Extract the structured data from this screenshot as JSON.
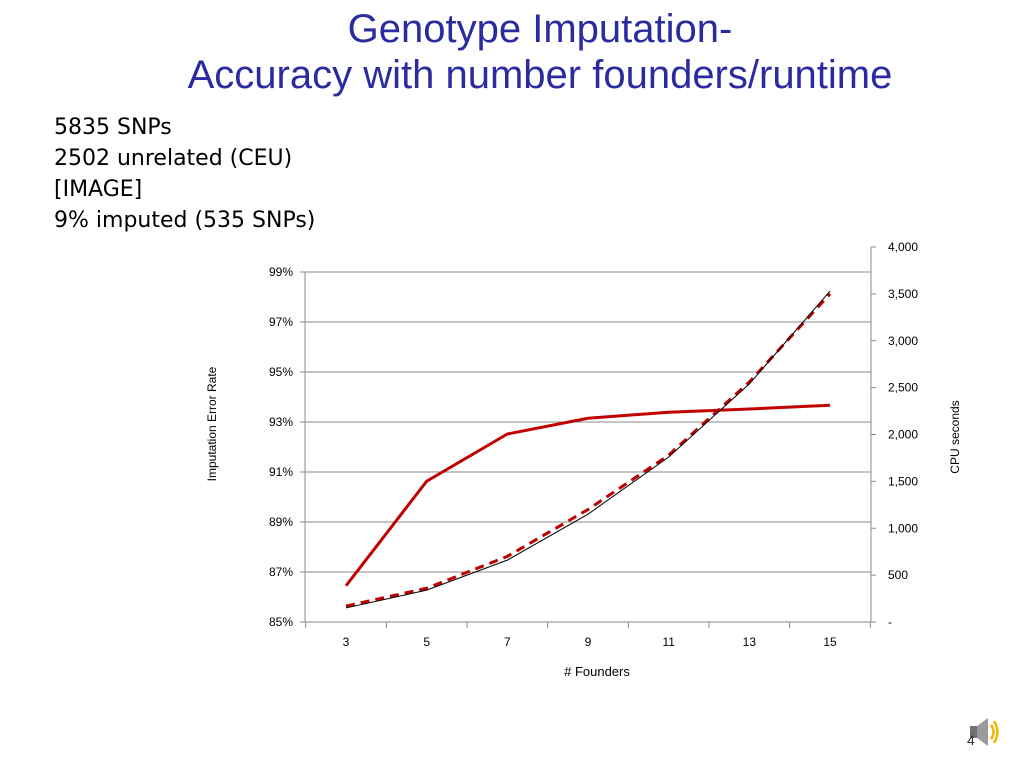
{
  "slide": {
    "title_line1": "Genotype Imputation-",
    "title_line2": "Accuracy with number founders/runtime",
    "notes": [
      "5835 SNPs",
      "2502 unrelated (CEU)",
      "[IMAGE]",
      "9% imputed (535 SNPs)"
    ],
    "speaker_icon": "speaker-sound-icon",
    "page_number": "4"
  },
  "chart_data": {
    "type": "line",
    "x": [
      3,
      5,
      7,
      9,
      11,
      13,
      15
    ],
    "x_ticks": [
      "3",
      "5",
      "7",
      "9",
      "11",
      "13",
      "15"
    ],
    "xlabel": "# Founders",
    "ylabel_left": "Imputation Error Rate",
    "ylabel_right": "CPU seconds",
    "ylim_left": [
      0.85,
      1.0
    ],
    "ylim_right": [
      0,
      4000
    ],
    "yticks_left": [
      "85%",
      "87%",
      "89%",
      "91%",
      "93%",
      "95%",
      "97%",
      "99%"
    ],
    "yticks_right": [
      "-",
      "500",
      "1,000",
      "1,500",
      "2,000",
      "2,500",
      "3,000",
      "3,500",
      "4,000"
    ],
    "grid": true,
    "series": [
      {
        "axis": "left",
        "color": "#c00000",
        "style": "solid",
        "values": [
          0.8645,
          0.9063,
          0.9252,
          0.9315,
          0.9339,
          0.9352,
          0.9367
        ]
      },
      {
        "axis": "right",
        "color": "#c00000",
        "style": "dashed",
        "values": [
          170,
          360,
          700,
          1200,
          1780,
          2560,
          3500
        ]
      },
      {
        "axis": "right",
        "color": "#000000",
        "style": "thin-trend",
        "values": [
          150,
          340,
          660,
          1150,
          1760,
          2540,
          3530
        ]
      }
    ]
  }
}
